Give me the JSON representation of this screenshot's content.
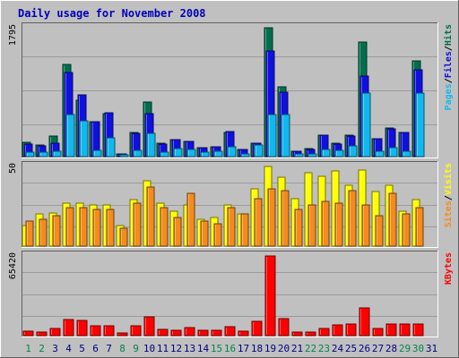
{
  "chart_data": {
    "type": "bar",
    "title": "Daily usage for November 2008",
    "days": [
      "1",
      "2",
      "3",
      "4",
      "5",
      "6",
      "7",
      "8",
      "9",
      "10",
      "11",
      "12",
      "13",
      "14",
      "15",
      "16",
      "17",
      "18",
      "19",
      "20",
      "21",
      "22",
      "23",
      "24",
      "25",
      "26",
      "27",
      "28",
      "29",
      "30",
      "31"
    ],
    "weekend_days": [
      "1",
      "2",
      "8",
      "9",
      "15",
      "16",
      "22",
      "23",
      "29",
      "30"
    ],
    "panels": [
      {
        "id": "hits",
        "max_label": "1795",
        "ymax": 1795,
        "right_labels": [
          "Pages",
          "/",
          "Files",
          "/",
          "Hits"
        ],
        "series": [
          {
            "name": "Hits",
            "color": "#006f4d",
            "values": [
              200,
              160,
              290,
              1290,
              790,
              480,
              600,
              40,
              340,
              760,
              190,
              240,
              210,
              130,
              140,
              340,
              100,
              190,
              1795,
              970,
              70,
              110,
              300,
              190,
              300,
              1600,
              250,
              400,
              340,
              1340,
              0
            ]
          },
          {
            "name": "Files",
            "color": "#1010e0",
            "values": [
              180,
              150,
              190,
              1170,
              860,
              480,
              610,
              40,
              330,
              600,
              180,
              240,
              210,
              130,
              140,
              350,
              100,
              190,
              1470,
              900,
              70,
              100,
              300,
              180,
              290,
              1120,
              250,
              390,
              340,
              1210,
              0
            ]
          },
          {
            "name": "Pages",
            "color": "#11b8ef",
            "values": [
              60,
              60,
              80,
              590,
              500,
              90,
              260,
              10,
              90,
              330,
              60,
              110,
              100,
              60,
              70,
              140,
              40,
              160,
              590,
              580,
              40,
              40,
              100,
              90,
              150,
              880,
              70,
              120,
              80,
              880,
              0
            ]
          }
        ]
      },
      {
        "id": "visits",
        "max_label": "50",
        "ymax": 50,
        "right_labels": [
          "Sites",
          "/",
          "Visits"
        ],
        "series": [
          {
            "name": "Visits",
            "color": "#ffff00",
            "values": [
              13,
              20,
              21,
              27,
              27,
              26,
              26,
              13,
              29,
              41,
              27,
              22,
              26,
              17,
              18,
              26,
              20,
              36,
              50,
              43,
              30,
              46,
              44,
              47,
              38,
              48,
              34,
              38,
              22,
              29,
              0
            ]
          },
          {
            "name": "Sites",
            "color": "#f48b1b",
            "values": [
              16,
              17,
              19,
              24,
              24,
              23,
              23,
              11,
              27,
              37,
              24,
              18,
              33,
              16,
              14,
              24,
              20,
              30,
              36,
              35,
              23,
              26,
              28,
              27,
              35,
              26,
              19,
              33,
              20,
              24,
              0
            ]
          }
        ]
      },
      {
        "id": "kbytes",
        "max_label": "65420",
        "ymax": 65420,
        "right_labels": [
          "KBytes"
        ],
        "series": [
          {
            "name": "KBytes",
            "color": "#ff0000",
            "values": [
              3400,
              3300,
              5800,
              13300,
              12300,
              8000,
              8000,
              2200,
              7800,
              15500,
              4800,
              4500,
              6800,
              4200,
              4700,
              7100,
              3800,
              11900,
              65420,
              14200,
              3000,
              2600,
              5700,
              8700,
              9200,
              22500,
              5800,
              9400,
              9400,
              9300,
              0
            ]
          }
        ]
      }
    ]
  },
  "colors": {
    "background": "#c0c0c0",
    "plot": "#ffffff",
    "grid": "#9c9c9c",
    "title": "#0000b8",
    "weekday_label": "#000080",
    "weekend_label": "#00854c"
  }
}
